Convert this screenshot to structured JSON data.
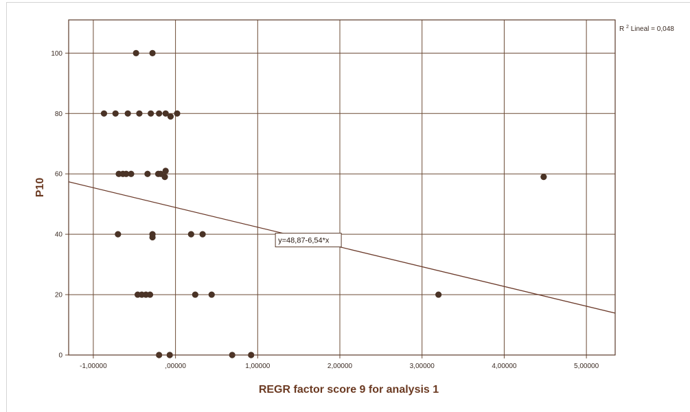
{
  "chart_data": {
    "type": "scatter",
    "title": "",
    "xlabel": "REGR factor score   9 for analysis 1",
    "ylabel": "P10",
    "xlim": [
      -1.3,
      5.35
    ],
    "ylim": [
      0,
      111
    ],
    "x_ticks": [
      -1,
      0,
      1,
      2,
      3,
      4,
      5
    ],
    "x_tick_labels": [
      "-1,00000",
      ",00000",
      "1,00000",
      "2,00000",
      "3,00000",
      "4,00000",
      "5,00000"
    ],
    "y_ticks": [
      0,
      20,
      40,
      60,
      80,
      100
    ],
    "y_tick_labels": [
      "0",
      "20",
      "40",
      "60",
      "80",
      "100"
    ],
    "grid": true,
    "fit_line": {
      "intercept": 48.87,
      "slope": -6.54,
      "equation_label": "y=48,87-6,54*x",
      "r2_label_sup": "2",
      "r2_label_prefix": "R",
      "r2_label_text": " Lineal = 0,048"
    },
    "points": [
      {
        "x": -0.48,
        "y": 100
      },
      {
        "x": -0.28,
        "y": 100
      },
      {
        "x": -0.87,
        "y": 80
      },
      {
        "x": -0.73,
        "y": 80
      },
      {
        "x": -0.58,
        "y": 80
      },
      {
        "x": -0.44,
        "y": 80
      },
      {
        "x": -0.3,
        "y": 80
      },
      {
        "x": -0.2,
        "y": 80
      },
      {
        "x": -0.12,
        "y": 80
      },
      {
        "x": -0.06,
        "y": 79
      },
      {
        "x": 0.02,
        "y": 80
      },
      {
        "x": -0.69,
        "y": 60
      },
      {
        "x": -0.64,
        "y": 60
      },
      {
        "x": -0.6,
        "y": 60
      },
      {
        "x": -0.54,
        "y": 60
      },
      {
        "x": -0.34,
        "y": 60
      },
      {
        "x": -0.21,
        "y": 60
      },
      {
        "x": -0.18,
        "y": 60
      },
      {
        "x": -0.13,
        "y": 59
      },
      {
        "x": -0.12,
        "y": 61
      },
      {
        "x": 4.48,
        "y": 59
      },
      {
        "x": -0.7,
        "y": 40
      },
      {
        "x": -0.28,
        "y": 40
      },
      {
        "x": -0.28,
        "y": 39
      },
      {
        "x": 0.19,
        "y": 40
      },
      {
        "x": 0.33,
        "y": 40
      },
      {
        "x": -0.46,
        "y": 20
      },
      {
        "x": -0.41,
        "y": 20
      },
      {
        "x": -0.36,
        "y": 20
      },
      {
        "x": -0.31,
        "y": 20
      },
      {
        "x": 0.24,
        "y": 20
      },
      {
        "x": 0.44,
        "y": 20
      },
      {
        "x": 3.2,
        "y": 20
      },
      {
        "x": -0.2,
        "y": 0
      },
      {
        "x": -0.07,
        "y": 0
      },
      {
        "x": 0.69,
        "y": 0
      },
      {
        "x": 0.92,
        "y": 0
      }
    ]
  },
  "colors": {
    "frame": "#5a3a2a",
    "grid": "#6b4a35",
    "point": "#4a3326",
    "fit_line": "#6b3a2a",
    "axis_title": "#6b3a22"
  }
}
